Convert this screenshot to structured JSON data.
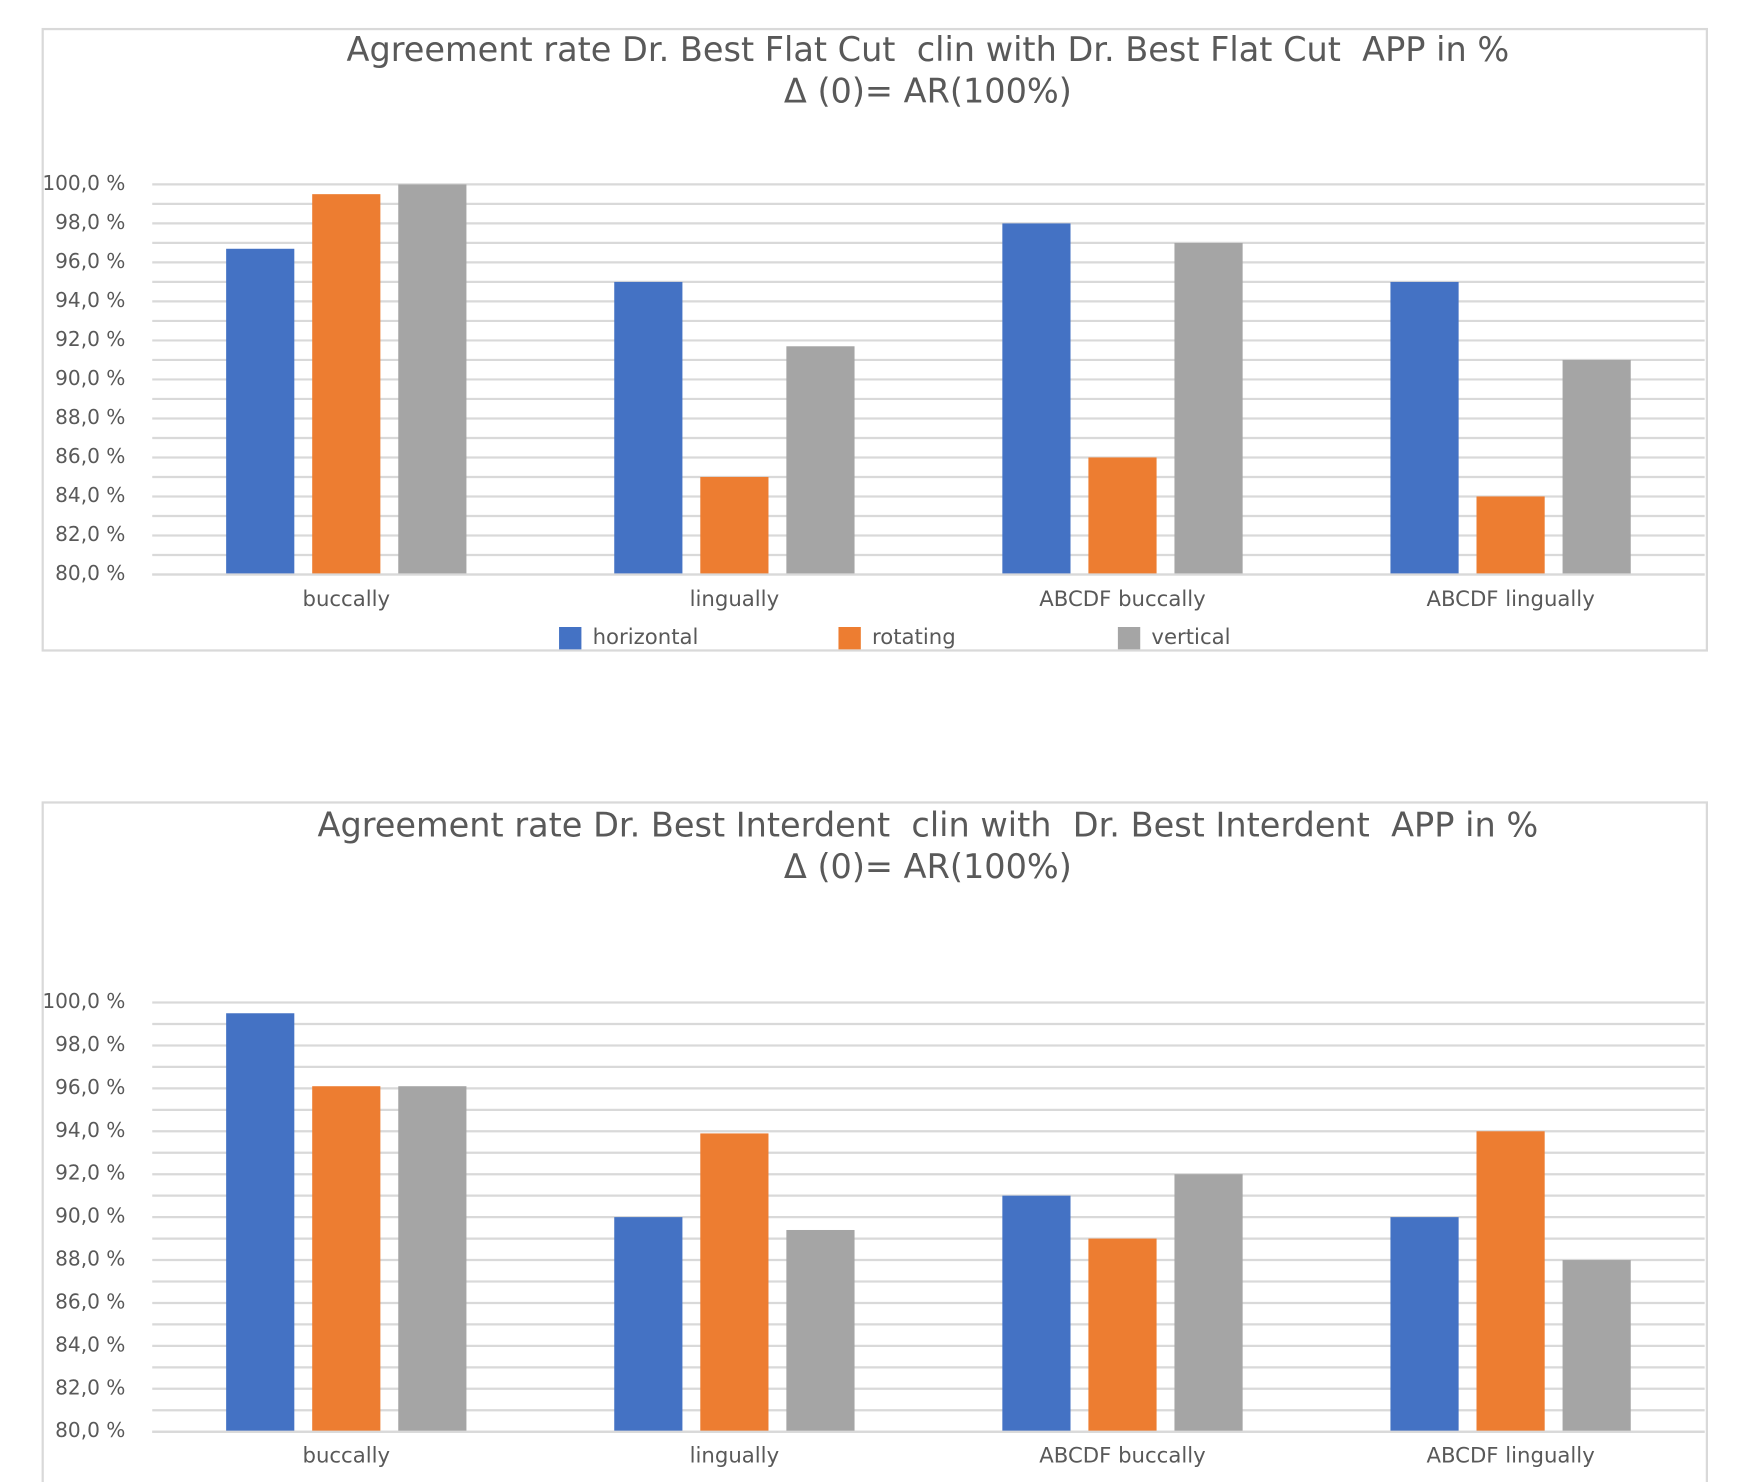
{
  "chart_data": [
    {
      "type": "bar",
      "title": "Agreement rate Dr. Best Flat Cut  clin with Dr. Best Flat Cut  APP in %",
      "subtitle": "Δ (0)= AR(100%)",
      "categories": [
        "buccally",
        "lingually",
        "ABCDF buccally",
        "ABCDF lingually"
      ],
      "series": [
        {
          "name": "horizontal",
          "color": "#4472c4",
          "values": [
            96.7,
            95.0,
            98.0,
            95.0
          ]
        },
        {
          "name": "rotating",
          "color": "#ed7d31",
          "values": [
            99.5,
            85.0,
            86.0,
            84.0
          ]
        },
        {
          "name": "vertical",
          "color": "#a5a5a5",
          "values": [
            100.0,
            91.7,
            97.0,
            91.0
          ]
        }
      ],
      "ylim": [
        80,
        100
      ],
      "yticks": [
        {
          "value": 80,
          "label": "80,0 %"
        },
        {
          "value": 82,
          "label": "82,0 %"
        },
        {
          "value": 84,
          "label": "84,0 %"
        },
        {
          "value": 86,
          "label": "86,0 %"
        },
        {
          "value": 88,
          "label": "88,0 %"
        },
        {
          "value": 90,
          "label": "90,0 %"
        },
        {
          "value": 92,
          "label": "92,0 %"
        },
        {
          "value": 94,
          "label": "94,0 %"
        },
        {
          "value": 96,
          "label": "96,0 %"
        },
        {
          "value": 98,
          "label": "98,0 %"
        },
        {
          "value": 100,
          "label": "100,0 %"
        }
      ],
      "grid": true,
      "legend": "bottom"
    },
    {
      "type": "bar",
      "title": "Agreement rate Dr. Best Interdent  clin with  Dr. Best Interdent  APP in %",
      "subtitle": "Δ (0)= AR(100%)",
      "categories": [
        "buccally",
        "lingually",
        "ABCDF buccally",
        "ABCDF lingually"
      ],
      "series": [
        {
          "color": "#4472c4",
          "values": [
            99.5,
            90.0,
            91.0,
            90.0
          ]
        },
        {
          "color": "#ed7d31",
          "values": [
            96.1,
            93.9,
            89.0,
            94.0
          ]
        },
        {
          "color": "#a5a5a5",
          "values": [
            96.1,
            89.4,
            92.0,
            88.0
          ]
        }
      ],
      "ylim": [
        80,
        100
      ],
      "yticks": [
        {
          "value": 80,
          "label": "80,0 %"
        },
        {
          "value": 82,
          "label": "82,0 %"
        },
        {
          "value": 84,
          "label": "84,0 %"
        },
        {
          "value": 86,
          "label": "86,0 %"
        },
        {
          "value": 88,
          "label": "88,0 %"
        },
        {
          "value": 90,
          "label": "90,0 %"
        },
        {
          "value": 92,
          "label": "92,0 %"
        },
        {
          "value": 94,
          "label": "94,0 %"
        },
        {
          "value": 96,
          "label": "96,0 %"
        },
        {
          "value": 98,
          "label": "98,0 %"
        },
        {
          "value": 100,
          "label": "100,0 %"
        }
      ],
      "grid": true
    }
  ]
}
